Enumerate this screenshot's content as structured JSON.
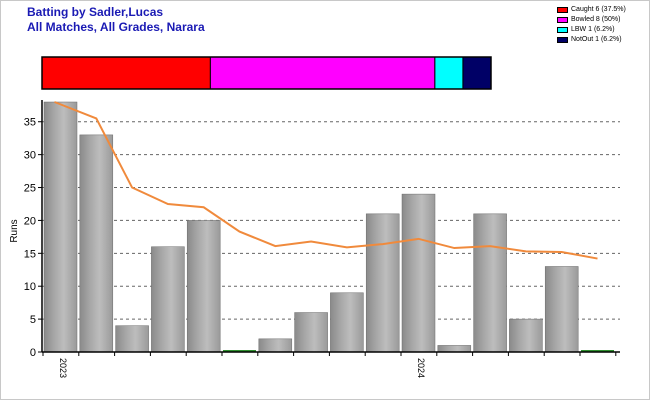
{
  "header": {
    "title": "Batting by Sadler,Lucas",
    "subtitle": "All Matches, All Grades, Narara"
  },
  "chart_data": [
    {
      "type": "bar",
      "orientation": "horizontal-stacked",
      "title": "",
      "series": [
        {
          "name": "Caught 6 (37.5%)",
          "value": 6,
          "percent": 37.5,
          "color": "#ff0000"
        },
        {
          "name": "Bowled 8 (50%)",
          "value": 8,
          "percent": 50,
          "color": "#ff00ff"
        },
        {
          "name": "LBW 1 (6.2%)",
          "value": 1,
          "percent": 6.2,
          "color": "#00ffff"
        },
        {
          "name": "NotOut 1 (6.2%)",
          "value": 1,
          "percent": 6.2,
          "color": "#000066"
        }
      ],
      "legend_placement": "top-right"
    },
    {
      "type": "bar",
      "ylabel": "Runs",
      "ylim": [
        0,
        38
      ],
      "yticks": [
        0,
        5,
        10,
        15,
        20,
        25,
        30,
        35
      ],
      "grid": true,
      "x_tick_labels": [
        {
          "label": "2023",
          "index": 0
        },
        {
          "label": "2024",
          "index": 10
        }
      ],
      "series": [
        {
          "type": "bar",
          "values": [
            38,
            33,
            4,
            16,
            20,
            0,
            2,
            6,
            9,
            21,
            24,
            1,
            21,
            5,
            13,
            0
          ],
          "color": "#999999"
        },
        {
          "type": "line",
          "values": [
            38,
            35.5,
            25,
            22.5,
            22,
            18.3,
            16.1,
            16.8,
            15.9,
            16.4,
            17.2,
            15.8,
            16.1,
            15.3,
            15.2,
            14.2
          ],
          "color": "#f08a3c"
        }
      ]
    }
  ]
}
